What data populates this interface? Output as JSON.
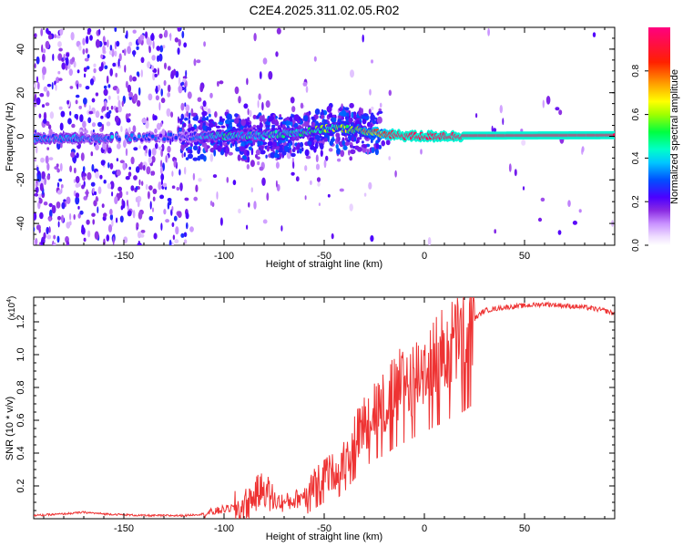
{
  "title": "C2E4.2025.311.02.05.R02",
  "chart_data": [
    {
      "type": "heatmap",
      "title": "C2E4.2025.311.02.05.R02",
      "xlabel": "Height of straight line (km)",
      "ylabel": "Frequency (Hz)",
      "xlim": [
        -195,
        95
      ],
      "ylim": [
        -50,
        50
      ],
      "xticks": [
        -150,
        -100,
        -50,
        0,
        50
      ],
      "yticks": [
        -40,
        -20,
        0,
        20,
        40
      ],
      "colorbar": {
        "label": "Normalized spectral amplitude",
        "range": [
          0,
          1
        ],
        "ticks": [
          "0.0",
          "0.2",
          "0.4",
          "0.6",
          "0.8"
        ],
        "tick_values": [
          0.0,
          0.2,
          0.4,
          0.6,
          0.8
        ]
      },
      "ridge": {
        "x": [
          -195,
          -160,
          -120,
          -100,
          -80,
          -60,
          -45,
          -35,
          -25,
          -15,
          -5,
          0,
          5,
          10,
          15,
          20,
          95
        ],
        "freq": [
          -1,
          -1,
          0,
          0,
          0.5,
          2,
          4,
          3,
          1.5,
          0.5,
          0,
          0,
          0,
          0.3,
          0,
          0.3,
          0.5
        ],
        "amplitude": [
          0.35,
          0.35,
          0.25,
          0.45,
          0.4,
          0.5,
          0.55,
          0.6,
          0.75,
          0.95,
          0.95,
          0.95,
          0.95,
          0.95,
          0.95,
          0.95,
          0.95
        ]
      }
    },
    {
      "type": "line",
      "xlabel": "Height of straight line (km)",
      "ylabel": "SNR (10 * v/v)",
      "scale_label": "(x10",
      "scale_exp": "4",
      "scale_suffix": ")",
      "xlim": [
        -195,
        95
      ],
      "ylim": [
        0,
        1.35
      ],
      "xticks": [
        -150,
        -100,
        -50,
        0,
        50
      ],
      "yticks": [
        0.2,
        0.4,
        0.6,
        0.8,
        1.0,
        1.2
      ],
      "series": [
        {
          "name": "SNR",
          "color": "#ee3333",
          "x": [
            -195,
            -180,
            -170,
            -160,
            -140,
            -120,
            -110,
            -100,
            -90,
            -85,
            -80,
            -75,
            -70,
            -65,
            -60,
            -55,
            -50,
            -45,
            -40,
            -35,
            -30,
            -25,
            -20,
            -15,
            -10,
            -5,
            0,
            5,
            10,
            15,
            20,
            25,
            30,
            40,
            50,
            60,
            70,
            80,
            90,
            95
          ],
          "y": [
            0.02,
            0.03,
            0.04,
            0.03,
            0.02,
            0.02,
            0.03,
            0.06,
            0.08,
            0.15,
            0.2,
            0.12,
            0.1,
            0.12,
            0.15,
            0.22,
            0.28,
            0.3,
            0.38,
            0.5,
            0.6,
            0.7,
            0.72,
            0.8,
            0.85,
            0.9,
            0.95,
            1.0,
            1.05,
            1.1,
            1.15,
            1.22,
            1.27,
            1.29,
            1.3,
            1.31,
            1.3,
            1.29,
            1.27,
            1.25
          ]
        }
      ]
    }
  ]
}
